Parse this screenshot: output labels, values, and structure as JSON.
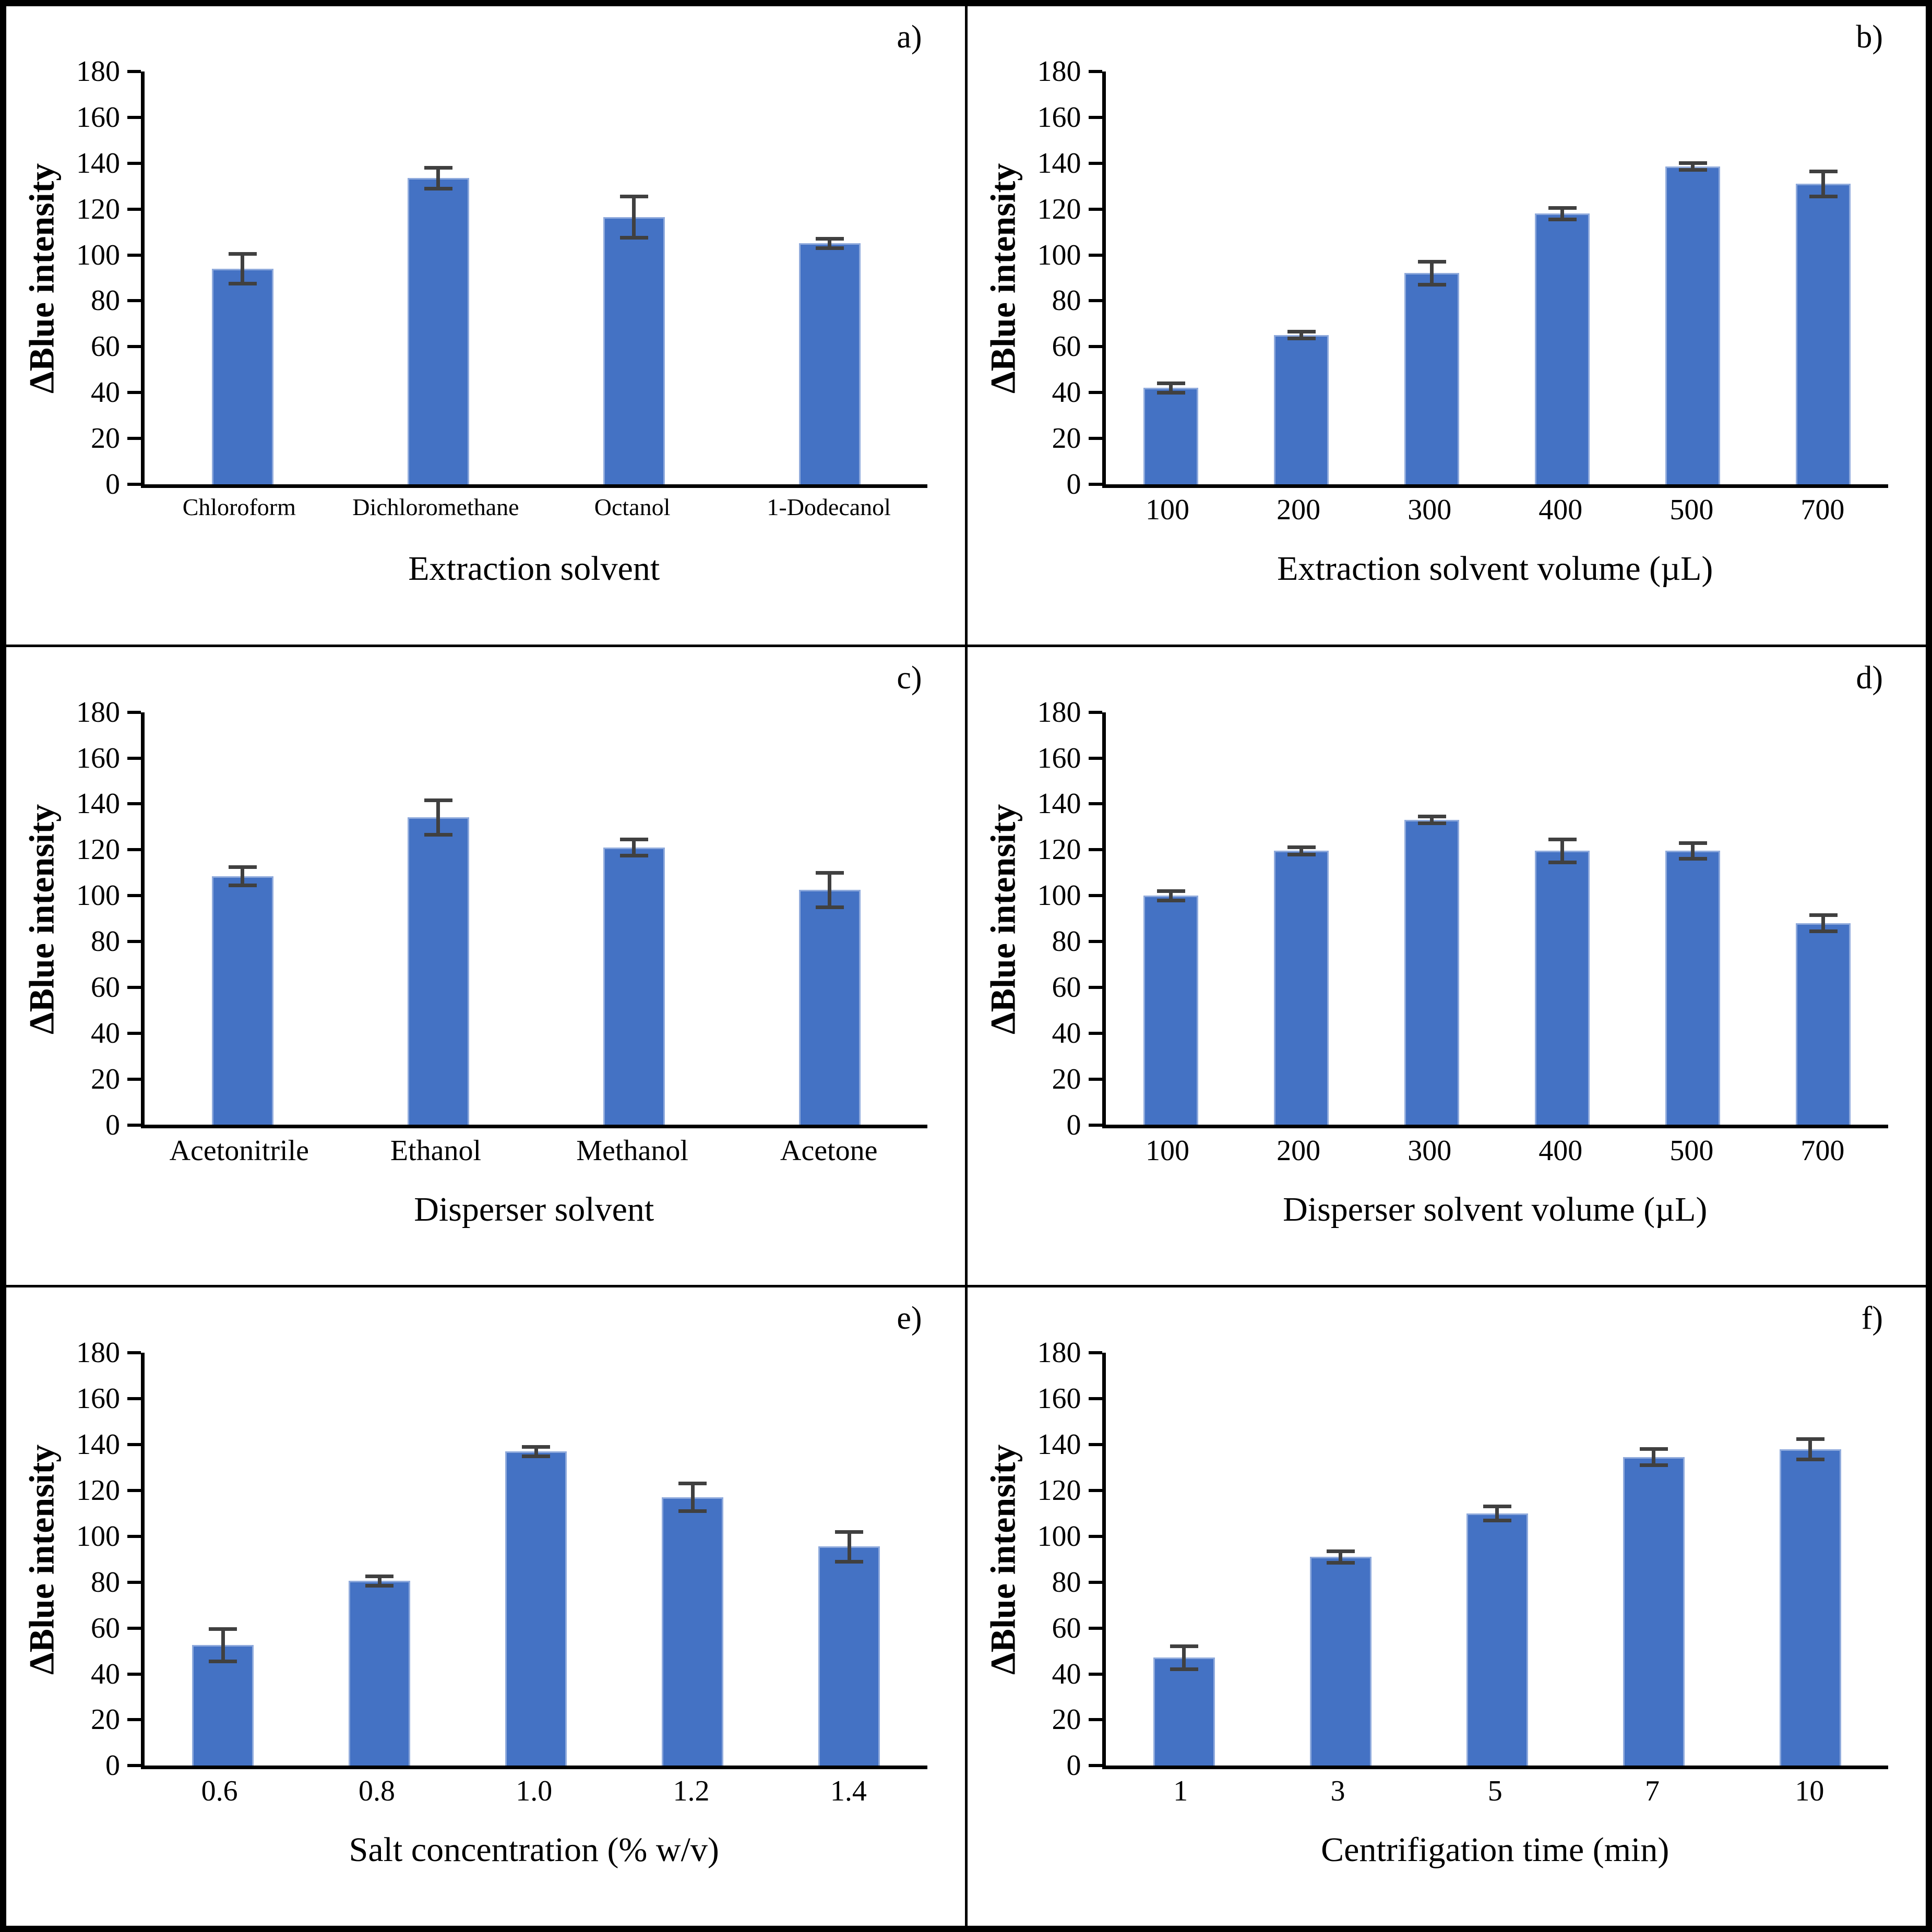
{
  "figure": {
    "description": "Six-panel optimization bar chart figure",
    "colors": {
      "bar_fill": "#4472C4",
      "bar_edge": "#8FAADC",
      "error_bar": "#404040",
      "axis": "#000000",
      "background": "#FFFFFF",
      "border": "#000000"
    }
  },
  "chart_data": [
    {
      "type": "bar",
      "letter": "a)",
      "ylabel": "ΔBlue intensity",
      "xlabel": "Extraction solvent",
      "categories": [
        "Chloroform",
        "Dichloromethane",
        "Octanol",
        "1-Dodecanol"
      ],
      "values": [
        94,
        133.5,
        116.5,
        105
      ],
      "errors": [
        6.5,
        4.5,
        9,
        2
      ],
      "ylim": [
        0,
        180
      ],
      "ystep": 20,
      "grid": false,
      "legend": null
    },
    {
      "type": "bar",
      "letter": "b)",
      "ylabel": "ΔBlue intensity",
      "xlabel": "Extraction solvent volume (µL)",
      "categories": [
        "100",
        "200",
        "300",
        "400",
        "500",
        "700"
      ],
      "values": [
        42,
        65,
        92,
        118,
        138.5,
        131
      ],
      "errors": [
        2,
        1.5,
        5,
        2.5,
        1.5,
        5.5
      ],
      "ylim": [
        0,
        180
      ],
      "ystep": 20,
      "grid": false,
      "legend": null
    },
    {
      "type": "bar",
      "letter": "c)",
      "ylabel": "ΔBlue intensity",
      "xlabel": "Disperser solvent",
      "categories": [
        "Acetonitrile",
        "Ethanol",
        "Methanol",
        "Acetone"
      ],
      "values": [
        108.5,
        134,
        121,
        102.5
      ],
      "errors": [
        4,
        7.5,
        3.5,
        7.5
      ],
      "ylim": [
        0,
        180
      ],
      "ystep": 20,
      "grid": false,
      "legend": null
    },
    {
      "type": "bar",
      "letter": "d)",
      "ylabel": "ΔBlue intensity",
      "xlabel": "Disperser solvent volume (µL)",
      "categories": [
        "100",
        "200",
        "300",
        "400",
        "500",
        "700"
      ],
      "values": [
        100,
        119.5,
        133,
        119.5,
        119.5,
        88
      ],
      "errors": [
        2,
        1.5,
        1.5,
        5,
        3.5,
        3.5
      ],
      "ylim": [
        0,
        180
      ],
      "ystep": 20,
      "grid": false,
      "legend": null
    },
    {
      "type": "bar",
      "letter": "e)",
      "ylabel": "ΔBlue intensity",
      "xlabel": "Salt concentration (% w/v)",
      "categories": [
        "0.6",
        "0.8",
        "1.0",
        "1.2",
        "1.4"
      ],
      "values": [
        52.5,
        80.5,
        137,
        117,
        95.5
      ],
      "errors": [
        7,
        2,
        2,
        6,
        6.5
      ],
      "ylim": [
        0,
        180
      ],
      "ystep": 20,
      "grid": false,
      "legend": null
    },
    {
      "type": "bar",
      "letter": "f)",
      "ylabel": "ΔBlue intensity",
      "xlabel": "Centrifigation time (min)",
      "categories": [
        "1",
        "3",
        "5",
        "7",
        "10"
      ],
      "values": [
        47,
        91,
        110,
        134.5,
        138
      ],
      "errors": [
        5,
        2.5,
        3,
        3.5,
        4.5
      ],
      "ylim": [
        0,
        180
      ],
      "ystep": 20,
      "grid": false,
      "legend": null
    }
  ]
}
